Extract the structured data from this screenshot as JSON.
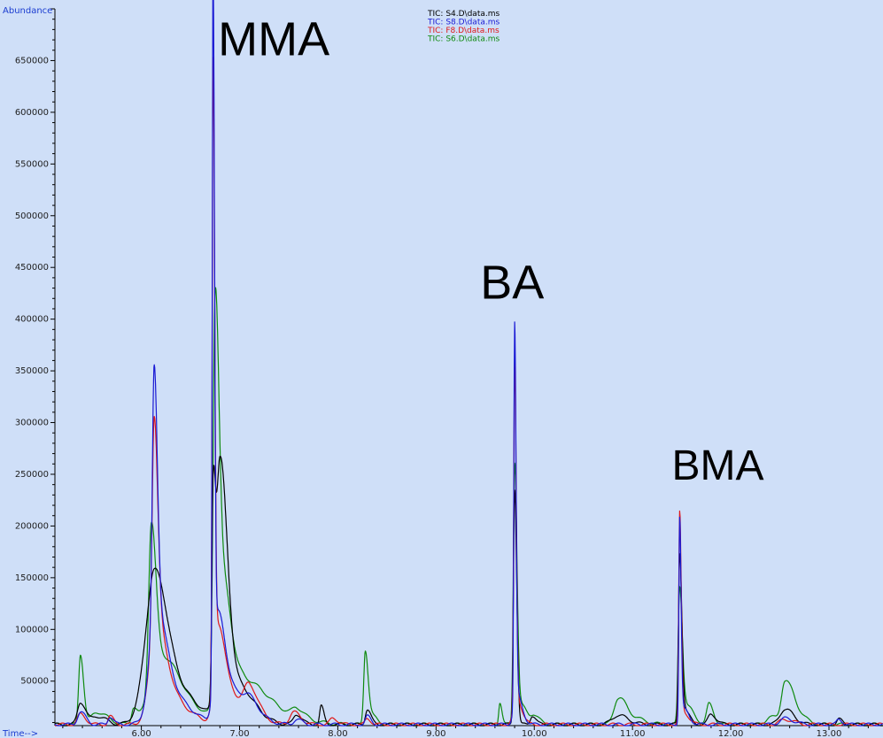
{
  "chart_data": {
    "type": "line",
    "ylabel": "Abundance",
    "xlabel": "Time-->",
    "xlim": [
      5.12,
      13.55
    ],
    "ylim": [
      7000,
      700000
    ],
    "x_ticks": [
      "6.00",
      "7.00",
      "8.00",
      "9.00",
      "10.00",
      "11.00",
      "12.00",
      "13.00"
    ],
    "y_ticks": [
      "50000",
      "100000",
      "150000",
      "200000",
      "250000",
      "300000",
      "350000",
      "400000",
      "450000",
      "500000",
      "550000",
      "600000",
      "650000"
    ],
    "baseline": 8000,
    "series": [
      {
        "name": "TIC: S4.D\\data.ms",
        "color": "#000000",
        "peaks": [
          [
            5.38,
            22000,
            0.03
          ],
          [
            5.55,
            8000,
            0.05
          ],
          [
            6.05,
            30000,
            0.08
          ],
          [
            6.13,
            95000,
            0.07
          ],
          [
            6.25,
            40000,
            0.15
          ],
          [
            6.73,
            180000,
            0.012
          ],
          [
            6.8,
            240000,
            0.04
          ],
          [
            6.95,
            40000,
            0.1
          ],
          [
            7.58,
            10000,
            0.03
          ],
          [
            7.83,
            18000,
            0.015
          ],
          [
            8.3,
            15000,
            0.02
          ],
          [
            9.8,
            228000,
            0.012
          ],
          [
            9.98,
            9000,
            0.02
          ],
          [
            10.85,
            9000,
            0.06
          ],
          [
            11.48,
            160000,
            0.012
          ],
          [
            11.52,
            15000,
            0.03
          ],
          [
            11.8,
            10000,
            0.03
          ],
          [
            12.55,
            15000,
            0.05
          ],
          [
            13.1,
            5000,
            0.02
          ]
        ]
      },
      {
        "name": "TIC: S8.D\\data.ms",
        "color": "#1a1ad4",
        "peaks": [
          [
            5.38,
            12000,
            0.03
          ],
          [
            5.68,
            8000,
            0.02
          ],
          [
            6.13,
            240000,
            0.018
          ],
          [
            6.14,
            90000,
            0.06
          ],
          [
            6.25,
            30000,
            0.12
          ],
          [
            6.73,
            680000,
            0.008
          ],
          [
            6.78,
            100000,
            0.04
          ],
          [
            6.95,
            30000,
            0.1
          ],
          [
            7.1,
            8000,
            0.05
          ],
          [
            7.58,
            5000,
            0.03
          ],
          [
            8.3,
            8000,
            0.02
          ],
          [
            9.8,
            365000,
            0.008
          ],
          [
            9.82,
            30000,
            0.03
          ],
          [
            11.48,
            195000,
            0.008
          ],
          [
            11.52,
            15000,
            0.03
          ],
          [
            12.55,
            6000,
            0.05
          ],
          [
            13.1,
            5000,
            0.02
          ]
        ]
      },
      {
        "name": "TIC: F8.D\\data.ms",
        "color": "#e01818",
        "peaks": [
          [
            5.38,
            10000,
            0.03
          ],
          [
            5.68,
            8000,
            0.02
          ],
          [
            6.13,
            205000,
            0.02
          ],
          [
            6.14,
            80000,
            0.06
          ],
          [
            6.25,
            25000,
            0.12
          ],
          [
            6.73,
            600000,
            0.009
          ],
          [
            6.78,
            90000,
            0.04
          ],
          [
            6.95,
            25000,
            0.1
          ],
          [
            7.1,
            22000,
            0.05
          ],
          [
            7.55,
            12000,
            0.04
          ],
          [
            7.95,
            6000,
            0.03
          ],
          [
            8.3,
            6000,
            0.02
          ],
          [
            9.8,
            330000,
            0.009
          ],
          [
            9.82,
            25000,
            0.03
          ],
          [
            11.48,
            200000,
            0.009
          ],
          [
            11.52,
            12000,
            0.03
          ],
          [
            12.55,
            5000,
            0.05
          ]
        ]
      },
      {
        "name": "TIC: S6.D\\data.ms",
        "color": "#0f8a0f",
        "peaks": [
          [
            5.38,
            68000,
            0.018
          ],
          [
            5.55,
            12000,
            0.06
          ],
          [
            5.92,
            15000,
            0.02
          ],
          [
            6.1,
            150000,
            0.025
          ],
          [
            6.18,
            60000,
            0.1
          ],
          [
            6.4,
            15000,
            0.15
          ],
          [
            6.75,
            360000,
            0.02
          ],
          [
            6.82,
            140000,
            0.05
          ],
          [
            7.05,
            40000,
            0.1
          ],
          [
            7.35,
            12000,
            0.15
          ],
          [
            7.58,
            8000,
            0.04
          ],
          [
            8.28,
            72000,
            0.016
          ],
          [
            8.35,
            8000,
            0.03
          ],
          [
            9.65,
            22000,
            0.012
          ],
          [
            9.8,
            245000,
            0.013
          ],
          [
            9.85,
            20000,
            0.04
          ],
          [
            10.0,
            8000,
            0.03
          ],
          [
            10.85,
            22000,
            0.04
          ],
          [
            10.95,
            8000,
            0.08
          ],
          [
            11.48,
            130000,
            0.015
          ],
          [
            11.55,
            18000,
            0.04
          ],
          [
            11.78,
            20000,
            0.025
          ],
          [
            12.4,
            8000,
            0.04
          ],
          [
            12.55,
            40000,
            0.035
          ],
          [
            12.65,
            15000,
            0.05
          ]
        ]
      }
    ],
    "annotations": [
      {
        "text": "MMA",
        "x": 6.78,
        "y": 655000
      },
      {
        "text": "BA",
        "x": 9.45,
        "y": 420000
      },
      {
        "text": "BMA",
        "x": 11.4,
        "y": 245000
      }
    ]
  }
}
